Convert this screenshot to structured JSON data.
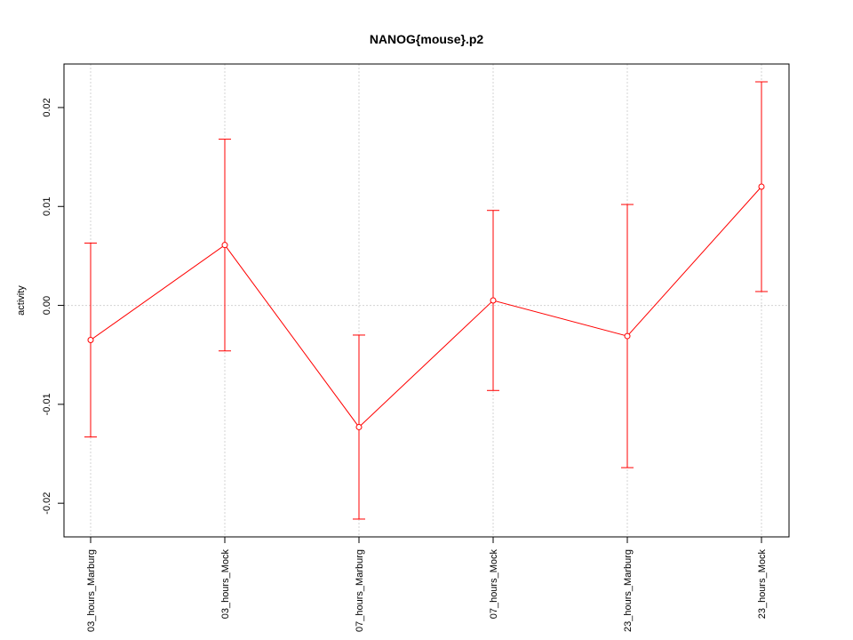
{
  "chart_data": {
    "type": "line",
    "title": "NANOG{mouse}.p2",
    "y_label": "activity",
    "categories": [
      "03_hours_Marburg",
      "03_hours_Mock",
      "07_hours_Marburg",
      "07_hours_Mock",
      "23_hours_Marburg",
      "23_hours_Mock"
    ],
    "values": [
      -0.0035,
      0.0061,
      -0.0123,
      0.0005,
      -0.0031,
      0.012
    ],
    "errors": [
      0.0098,
      0.0107,
      0.0093,
      0.0091,
      0.0133,
      0.0106
    ],
    "color": "#ff0000",
    "ylim": [
      -0.0234,
      0.0244
    ],
    "yticks": [
      -0.02,
      -0.01,
      {
        "value": 0,
        "label": "0.00"
      },
      0.01,
      0.02
    ],
    "grid": true,
    "reference_line": 0
  }
}
